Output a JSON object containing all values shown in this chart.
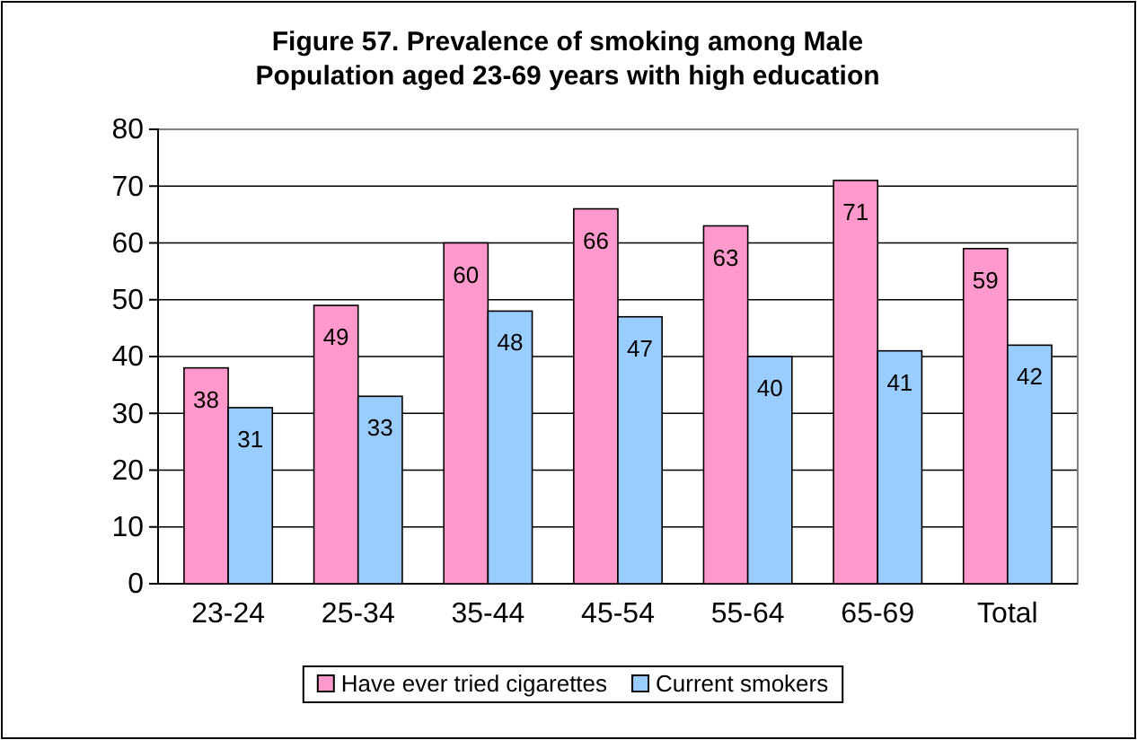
{
  "chart_data": {
    "type": "bar",
    "title": "Figure 57. Prevalence of smoking among Male Population aged 23-69 years with high education",
    "categories": [
      "23-24",
      "25-34",
      "35-44",
      "45-54",
      "55-64",
      "65-69",
      "Total"
    ],
    "series": [
      {
        "name": "Have ever tried cigarettes",
        "color": "#ff99cc",
        "values": [
          38,
          49,
          60,
          66,
          63,
          71,
          59
        ]
      },
      {
        "name": "Current smokers",
        "color": "#99ccff",
        "values": [
          31,
          33,
          48,
          47,
          40,
          41,
          42
        ]
      }
    ],
    "ylim": [
      0,
      80
    ],
    "yticks": [
      0,
      10,
      20,
      30,
      40,
      50,
      60,
      70,
      80
    ],
    "grid": "y",
    "legend": "bottom",
    "data_labels": true
  }
}
